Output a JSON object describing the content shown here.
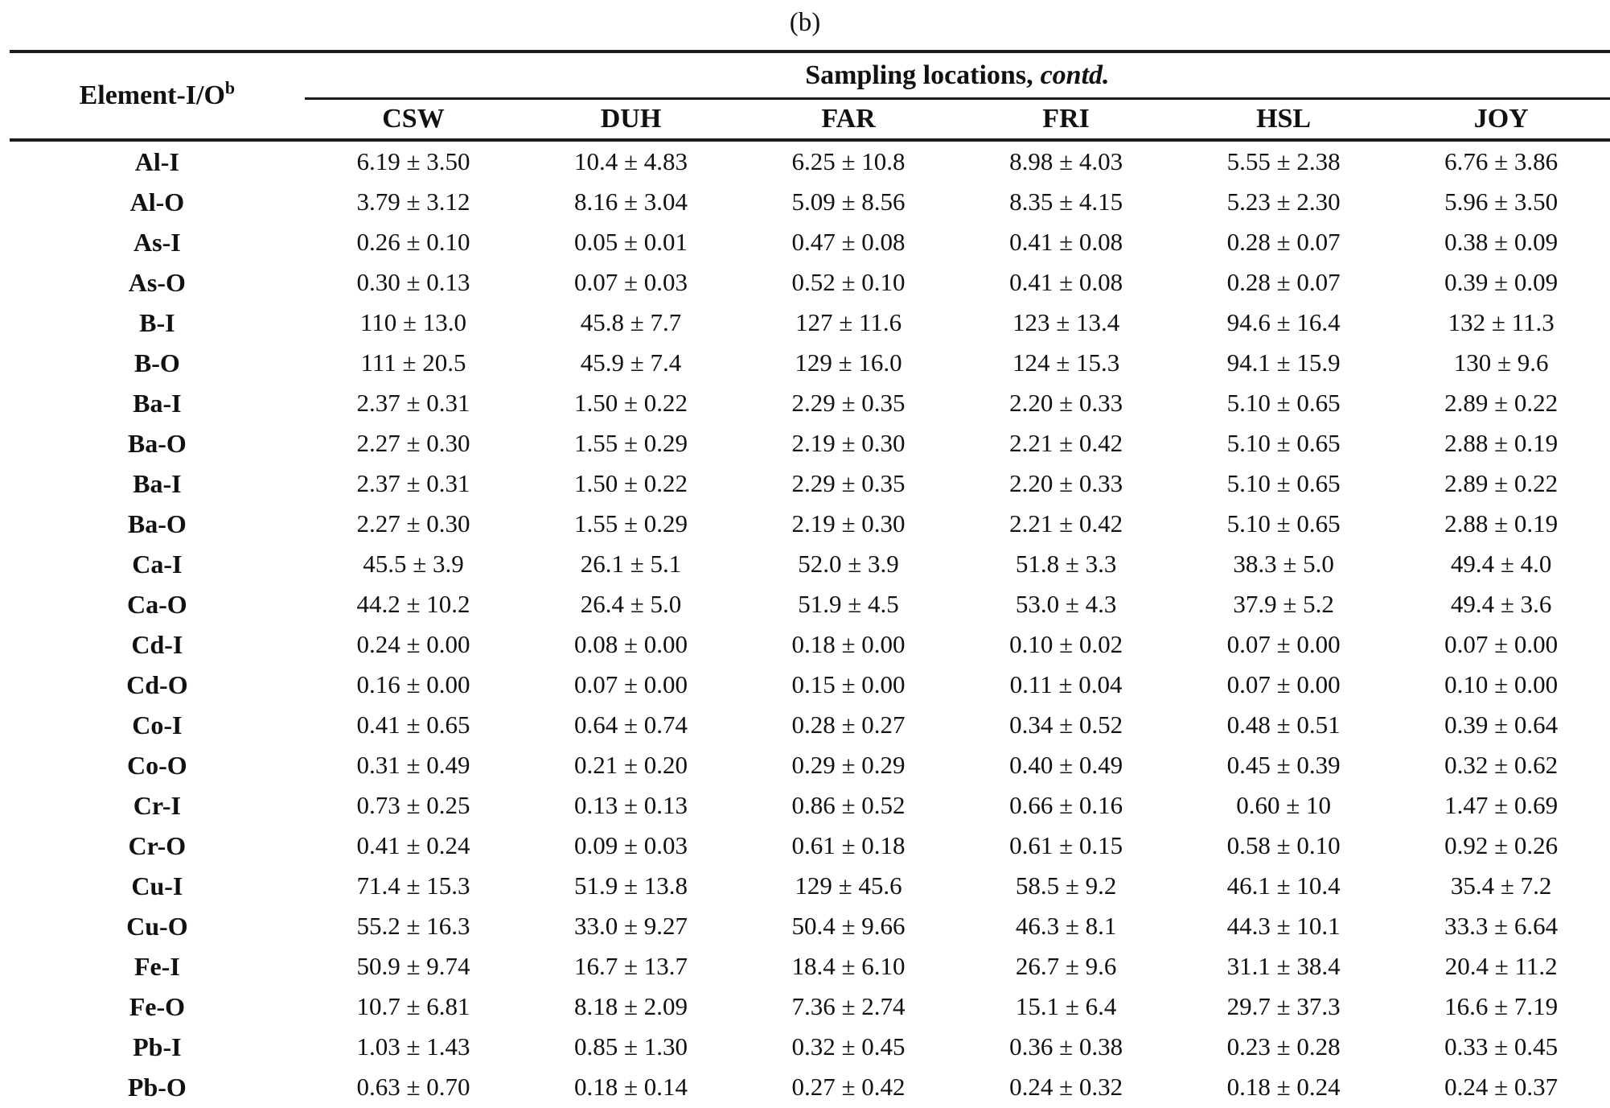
{
  "caption": "(b)",
  "table": {
    "row_header_label": "Element-I/O",
    "row_header_superscript": "b",
    "group_header": "Sampling locations,",
    "group_header_suffix": "contd.",
    "columns": [
      "CSW",
      "DUH",
      "FAR",
      "FRI",
      "HSL",
      "JOY"
    ],
    "rows": [
      {
        "element": "Al-I",
        "values": [
          "6.19 ± 3.50",
          "10.4 ± 4.83",
          "6.25 ± 10.8",
          "8.98 ± 4.03",
          "5.55 ± 2.38",
          "6.76 ± 3.86"
        ]
      },
      {
        "element": "Al-O",
        "values": [
          "3.79 ± 3.12",
          "8.16 ± 3.04",
          "5.09 ± 8.56",
          "8.35 ± 4.15",
          "5.23 ± 2.30",
          "5.96 ± 3.50"
        ]
      },
      {
        "element": "As-I",
        "values": [
          "0.26 ± 0.10",
          "0.05 ± 0.01",
          "0.47 ± 0.08",
          "0.41 ± 0.08",
          "0.28 ± 0.07",
          "0.38 ± 0.09"
        ]
      },
      {
        "element": "As-O",
        "values": [
          "0.30 ± 0.13",
          "0.07 ± 0.03",
          "0.52 ± 0.10",
          "0.41 ± 0.08",
          "0.28 ± 0.07",
          "0.39 ± 0.09"
        ]
      },
      {
        "element": "B-I",
        "values": [
          "110 ± 13.0",
          "45.8 ± 7.7",
          "127 ± 11.6",
          "123 ± 13.4",
          "94.6 ± 16.4",
          "132 ± 11.3"
        ]
      },
      {
        "element": "B-O",
        "values": [
          "111 ± 20.5",
          "45.9 ± 7.4",
          "129 ± 16.0",
          "124 ± 15.3",
          "94.1 ± 15.9",
          "130 ± 9.6"
        ]
      },
      {
        "element": "Ba-I",
        "values": [
          "2.37 ± 0.31",
          "1.50 ± 0.22",
          "2.29 ± 0.35",
          "2.20 ± 0.33",
          "5.10 ± 0.65",
          "2.89 ± 0.22"
        ]
      },
      {
        "element": "Ba-O",
        "values": [
          "2.27 ± 0.30",
          "1.55 ± 0.29",
          "2.19 ± 0.30",
          "2.21 ± 0.42",
          "5.10 ± 0.65",
          "2.88 ± 0.19"
        ]
      },
      {
        "element": "Ba-I",
        "values": [
          "2.37 ± 0.31",
          "1.50 ± 0.22",
          "2.29 ± 0.35",
          "2.20 ± 0.33",
          "5.10 ± 0.65",
          "2.89 ± 0.22"
        ]
      },
      {
        "element": "Ba-O",
        "values": [
          "2.27 ± 0.30",
          "1.55 ± 0.29",
          "2.19 ± 0.30",
          "2.21 ± 0.42",
          "5.10 ± 0.65",
          "2.88 ± 0.19"
        ]
      },
      {
        "element": "Ca-I",
        "values": [
          "45.5 ± 3.9",
          "26.1 ± 5.1",
          "52.0 ± 3.9",
          "51.8 ± 3.3",
          "38.3 ± 5.0",
          "49.4 ± 4.0"
        ]
      },
      {
        "element": "Ca-O",
        "values": [
          "44.2 ± 10.2",
          "26.4 ± 5.0",
          "51.9 ± 4.5",
          "53.0 ± 4.3",
          "37.9 ± 5.2",
          "49.4 ± 3.6"
        ]
      },
      {
        "element": "Cd-I",
        "values": [
          "0.24 ± 0.00",
          "0.08 ± 0.00",
          "0.18 ± 0.00",
          "0.10 ± 0.02",
          "0.07 ± 0.00",
          "0.07 ± 0.00"
        ]
      },
      {
        "element": "Cd-O",
        "values": [
          "0.16 ± 0.00",
          "0.07 ± 0.00",
          "0.15 ± 0.00",
          "0.11 ± 0.04",
          "0.07 ± 0.00",
          "0.10 ± 0.00"
        ]
      },
      {
        "element": "Co-I",
        "values": [
          "0.41 ± 0.65",
          "0.64 ± 0.74",
          "0.28 ± 0.27",
          "0.34 ± 0.52",
          "0.48 ± 0.51",
          "0.39 ± 0.64"
        ]
      },
      {
        "element": "Co-O",
        "values": [
          "0.31 ± 0.49",
          "0.21 ± 0.20",
          "0.29 ± 0.29",
          "0.40 ± 0.49",
          "0.45 ± 0.39",
          "0.32 ± 0.62"
        ]
      },
      {
        "element": "Cr-I",
        "values": [
          "0.73 ± 0.25",
          "0.13 ± 0.13",
          "0.86 ± 0.52",
          "0.66 ± 0.16",
          "0.60 ± 10",
          "1.47 ± 0.69"
        ]
      },
      {
        "element": "Cr-O",
        "values": [
          "0.41 ± 0.24",
          "0.09 ± 0.03",
          "0.61 ± 0.18",
          "0.61 ± 0.15",
          "0.58 ± 0.10",
          "0.92 ± 0.26"
        ]
      },
      {
        "element": "Cu-I",
        "values": [
          "71.4 ± 15.3",
          "51.9 ± 13.8",
          "129 ± 45.6",
          "58.5 ± 9.2",
          "46.1 ± 10.4",
          "35.4 ± 7.2"
        ]
      },
      {
        "element": "Cu-O",
        "values": [
          "55.2 ± 16.3",
          "33.0 ± 9.27",
          "50.4 ± 9.66",
          "46.3 ± 8.1",
          "44.3 ± 10.1",
          "33.3 ± 6.64"
        ]
      },
      {
        "element": "Fe-I",
        "values": [
          "50.9 ± 9.74",
          "16.7 ± 13.7",
          "18.4 ± 6.10",
          "26.7 ± 9.6",
          "31.1 ± 38.4",
          "20.4 ± 11.2"
        ]
      },
      {
        "element": "Fe-O",
        "values": [
          "10.7 ± 6.81",
          "8.18 ± 2.09",
          "7.36 ± 2.74",
          "15.1 ± 6.4",
          "29.7 ± 37.3",
          "16.6 ± 7.19"
        ]
      },
      {
        "element": "Pb-I",
        "values": [
          "1.03 ± 1.43",
          "0.85 ± 1.30",
          "0.32 ± 0.45",
          "0.36 ± 0.38",
          "0.23 ± 0.28",
          "0.33 ± 0.45"
        ]
      },
      {
        "element": "Pb-O",
        "values": [
          "0.63 ± 0.70",
          "0.18 ± 0.14",
          "0.27 ± 0.42",
          "0.24 ± 0.32",
          "0.18 ± 0.24",
          "0.24 ± 0.37"
        ]
      }
    ]
  }
}
